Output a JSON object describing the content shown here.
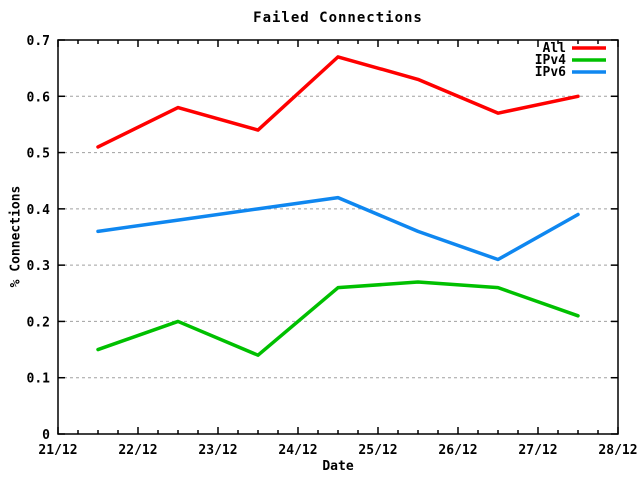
{
  "chart_data": {
    "type": "line",
    "title": "Failed Connections",
    "xlabel": "Date",
    "ylabel": "% Connections",
    "x": [
      21.5,
      22.5,
      23.5,
      24.5,
      25.5,
      26.5,
      27.5
    ],
    "series": [
      {
        "name": "All",
        "color": "#ff0000",
        "values": [
          0.51,
          0.58,
          0.54,
          0.67,
          0.63,
          0.57,
          0.6
        ]
      },
      {
        "name": "IPv4",
        "color": "#00c000",
        "values": [
          0.15,
          0.2,
          0.14,
          0.26,
          0.27,
          0.26,
          0.21
        ]
      },
      {
        "name": "IPv6",
        "color": "#0f87f0",
        "values": [
          0.36,
          0.38,
          0.4,
          0.42,
          0.36,
          0.31,
          0.39
        ]
      }
    ],
    "xlim": [
      21,
      28
    ],
    "ylim": [
      0,
      0.7
    ],
    "x_major_ticks": [
      21,
      22,
      23,
      24,
      25,
      26,
      27,
      28
    ],
    "x_tick_labels": [
      "21/12",
      "22/12",
      "23/12",
      "24/12",
      "25/12",
      "26/12",
      "27/12",
      "28/12"
    ],
    "x_minor_step": 0.25,
    "y_ticks": [
      0,
      0.1,
      0.2,
      0.3,
      0.4,
      0.5,
      0.6,
      0.7
    ],
    "y_tick_labels": [
      "0",
      "0.1",
      "0.2",
      "0.3",
      "0.4",
      "0.5",
      "0.6",
      "0.7"
    ],
    "grid": "horizontal-dashed",
    "legend_position": "top-right-inside",
    "line_width": 3.5,
    "colors": {
      "background": "#ffffff",
      "border": "#000000",
      "grid": "#a0a0a0",
      "text": "#000000"
    }
  }
}
